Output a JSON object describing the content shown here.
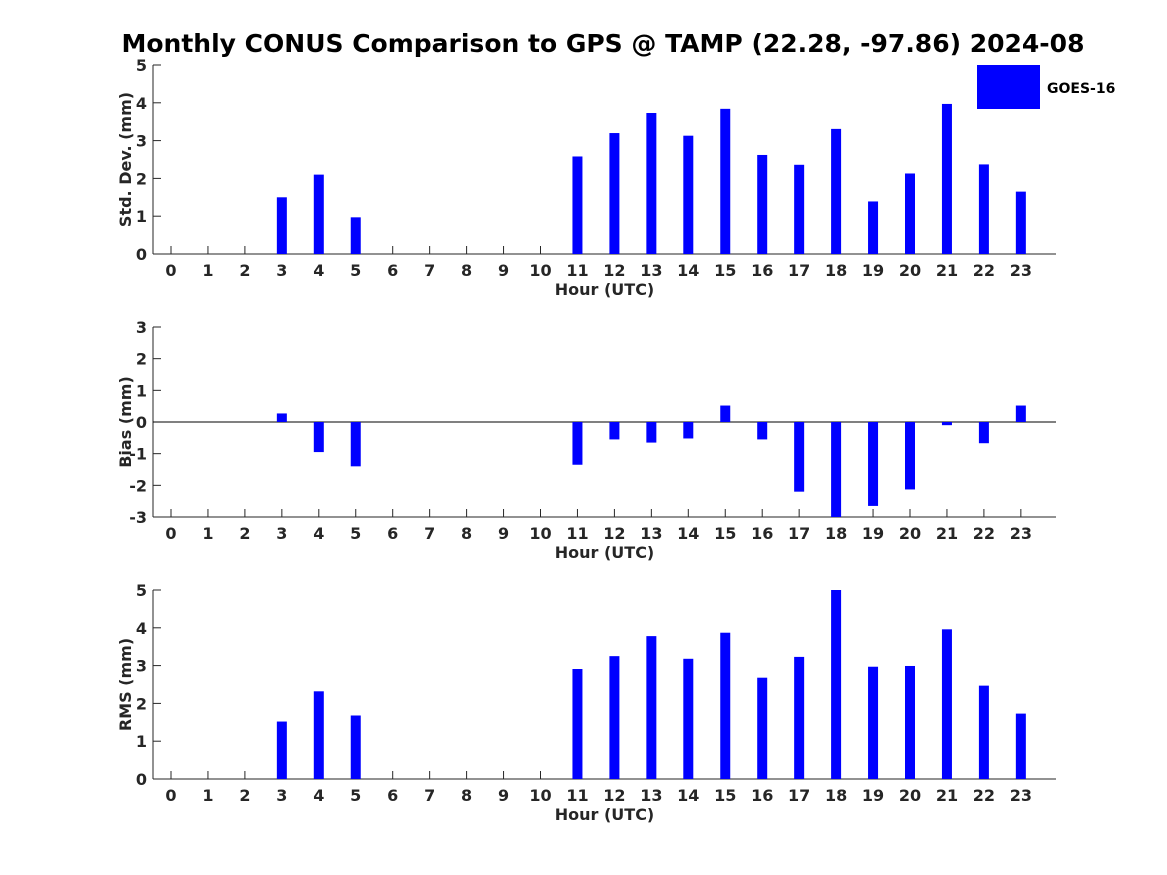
{
  "title": "Monthly CONUS Comparison to GPS @ TAMP (22.28, -97.86) 2024-08",
  "legend": {
    "label": "GOES-16",
    "color": "#0000ff"
  },
  "colors": {
    "bar": "#0000ff",
    "axis": "#262626",
    "zero_line": "#000000"
  },
  "chart_data": [
    {
      "type": "bar",
      "name": "stddev",
      "xlabel": "Hour (UTC)",
      "ylabel": "Std. Dev. (mm)",
      "ylim": [
        0,
        5
      ],
      "yticks": [
        0,
        1,
        2,
        3,
        4,
        5
      ],
      "x": [
        0,
        1,
        2,
        3,
        4,
        5,
        6,
        7,
        8,
        9,
        10,
        11,
        12,
        13,
        14,
        15,
        16,
        17,
        18,
        19,
        20,
        21,
        22,
        23
      ],
      "tick_labels": [
        "0",
        "1",
        "2",
        "3",
        "4",
        "5",
        "6",
        "7",
        "8",
        "9",
        "10",
        "11",
        "12",
        "13",
        "14",
        "15",
        "16",
        "17",
        "18",
        "19",
        "20",
        "21",
        "22",
        "23"
      ],
      "values": [
        null,
        null,
        null,
        1.5,
        2.1,
        0.97,
        null,
        null,
        null,
        null,
        null,
        2.58,
        3.2,
        3.73,
        3.13,
        3.84,
        2.62,
        2.36,
        3.31,
        1.39,
        2.13,
        3.97,
        2.37,
        1.65
      ],
      "grid": false,
      "legend": "top-right"
    },
    {
      "type": "bar",
      "name": "bias",
      "xlabel": "Hour (UTC)",
      "ylabel": "Bias (mm)",
      "ylim": [
        -3,
        3
      ],
      "yticks": [
        -3,
        -2,
        -1,
        0,
        1,
        2,
        3
      ],
      "x": [
        0,
        1,
        2,
        3,
        4,
        5,
        6,
        7,
        8,
        9,
        10,
        11,
        12,
        13,
        14,
        15,
        16,
        17,
        18,
        19,
        20,
        21,
        22,
        23
      ],
      "tick_labels": [
        "0",
        "1",
        "2",
        "3",
        "4",
        "5",
        "6",
        "7",
        "8",
        "9",
        "10",
        "11",
        "12",
        "13",
        "14",
        "15",
        "16",
        "17",
        "18",
        "19",
        "20",
        "21",
        "22",
        "23"
      ],
      "values": [
        null,
        null,
        null,
        0.27,
        -0.95,
        -1.4,
        null,
        null,
        null,
        null,
        null,
        -1.35,
        -0.55,
        -0.65,
        -0.52,
        0.52,
        -0.55,
        -2.2,
        -3.0,
        -2.65,
        -2.13,
        -0.1,
        -0.67,
        0.52
      ],
      "grid": false
    },
    {
      "type": "bar",
      "name": "rms",
      "xlabel": "Hour (UTC)",
      "ylabel": "RMS (mm)",
      "ylim": [
        0,
        5
      ],
      "yticks": [
        0,
        1,
        2,
        3,
        4,
        5
      ],
      "x": [
        0,
        1,
        2,
        3,
        4,
        5,
        6,
        7,
        8,
        9,
        10,
        11,
        12,
        13,
        14,
        15,
        16,
        17,
        18,
        19,
        20,
        21,
        22,
        23
      ],
      "tick_labels": [
        "0",
        "1",
        "2",
        "3",
        "4",
        "5",
        "6",
        "7",
        "8",
        "9",
        "10",
        "11",
        "12",
        "13",
        "14",
        "15",
        "16",
        "17",
        "18",
        "19",
        "20",
        "21",
        "22",
        "23"
      ],
      "values": [
        null,
        null,
        null,
        1.52,
        2.32,
        1.68,
        null,
        null,
        null,
        null,
        null,
        2.91,
        3.25,
        3.78,
        3.18,
        3.87,
        2.68,
        3.23,
        5.0,
        2.97,
        2.99,
        3.96,
        2.47,
        1.73
      ],
      "grid": false
    }
  ]
}
